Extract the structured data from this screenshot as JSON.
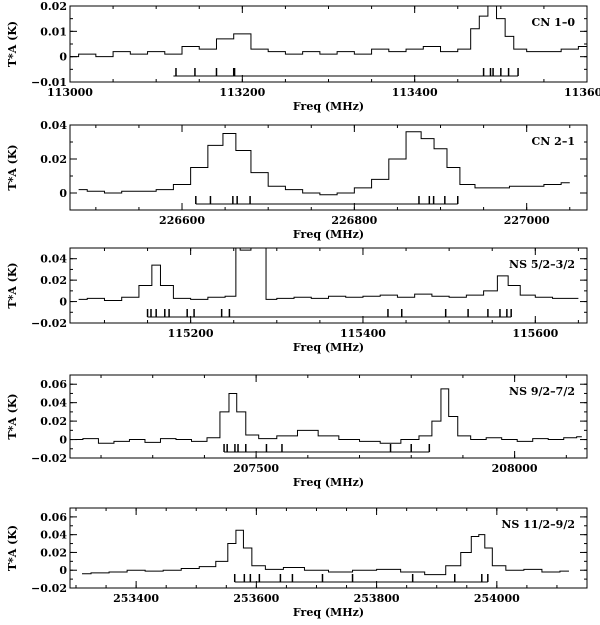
{
  "chart_data": [
    {
      "type": "line",
      "label": "CN 1–0",
      "xlabel": "Freq (MHz)",
      "ylabel": "T*A (K)",
      "xlim": [
        113000,
        113600
      ],
      "ylim": [
        -0.01,
        0.02
      ],
      "xticks": [
        113000,
        113200,
        113400,
        113600
      ],
      "yticks": [
        -0.01,
        0,
        0.01,
        0.02
      ],
      "ytick_labels": [
        "−0.01",
        "0",
        "0.01",
        "0.02"
      ],
      "series": [
        {
          "x": [
            113000,
            113020,
            113040,
            113060,
            113080,
            113100,
            113120,
            113140,
            113160,
            113180,
            113200,
            113220,
            113240,
            113260,
            113280,
            113300,
            113320,
            113340,
            113360,
            113380,
            113400,
            113420,
            113440,
            113460,
            113470,
            113480,
            113490,
            113500,
            113510,
            113520,
            113540,
            113560,
            113580,
            113600
          ],
          "y": [
            0.0,
            0.001,
            0.0,
            0.002,
            0.001,
            0.002,
            0.001,
            0.004,
            0.003,
            0.007,
            0.009,
            0.003,
            0.002,
            0.001,
            0.002,
            0.001,
            0.002,
            0.001,
            0.003,
            0.002,
            0.003,
            0.004,
            0.002,
            0.003,
            0.011,
            0.016,
            0.02,
            0.015,
            0.008,
            0.003,
            0.002,
            0.002,
            0.003,
            0.004
          ]
        }
      ],
      "hfs_bar": [
        113120,
        113520
      ],
      "hfs_lines": [
        113123,
        113145,
        113170,
        113190,
        113191,
        113480,
        113488,
        113491,
        113500,
        113509,
        113520
      ]
    },
    {
      "type": "line",
      "label": "CN 2–1",
      "xlabel": "Freq (MHz)",
      "ylabel": "T*A (K)",
      "xlim": [
        226470,
        227070
      ],
      "ylim": [
        -0.01,
        0.04
      ],
      "xticks": [
        226600,
        226800,
        227000
      ],
      "yticks": [
        0,
        0.02,
        0.04
      ],
      "ytick_labels": [
        "0",
        "0.02",
        "0.04"
      ],
      "series": [
        {
          "x": [
            226480,
            226500,
            226520,
            226540,
            226560,
            226580,
            226600,
            226620,
            226640,
            226655,
            226670,
            226690,
            226710,
            226730,
            226750,
            226770,
            226790,
            226810,
            226830,
            226850,
            226870,
            226885,
            226900,
            226915,
            226930,
            226950,
            226970,
            226990,
            227010,
            227030,
            227050
          ],
          "y": [
            0.002,
            0.001,
            0.0,
            0.001,
            0.001,
            0.002,
            0.005,
            0.015,
            0.028,
            0.035,
            0.025,
            0.012,
            0.004,
            0.002,
            0.0,
            -0.001,
            0.0,
            0.003,
            0.008,
            0.02,
            0.036,
            0.032,
            0.026,
            0.015,
            0.005,
            0.003,
            0.003,
            0.004,
            0.004,
            0.005,
            0.006
          ]
        }
      ],
      "hfs_bar": [
        226616,
        226920
      ],
      "hfs_lines": [
        226616,
        226633,
        226659,
        226664,
        226679,
        226875,
        226887,
        226892,
        226905,
        226920
      ]
    },
    {
      "type": "line",
      "label": "NS 5/2–3/2",
      "xlabel": "Freq (MHz)",
      "ylabel": "T*A (K)",
      "xlim": [
        115060,
        115660
      ],
      "ylim": [
        -0.02,
        0.05
      ],
      "xticks": [
        115200,
        115400,
        115600
      ],
      "yticks": [
        -0.02,
        0,
        0.02,
        0.04
      ],
      "ytick_labels": [
        "−0.02",
        "0",
        "0.02",
        "0.04"
      ],
      "series": [
        {
          "x": [
            115070,
            115090,
            115110,
            115130,
            115150,
            115160,
            115170,
            115190,
            115210,
            115230,
            115250,
            115255,
            115260,
            115280,
            115285,
            115290,
            115310,
            115330,
            115350,
            115370,
            115390,
            115410,
            115430,
            115450,
            115470,
            115490,
            115510,
            115530,
            115550,
            115562,
            115575,
            115590,
            115610,
            115630,
            115650
          ],
          "y": [
            0.002,
            0.003,
            0.001,
            0.004,
            0.015,
            0.034,
            0.015,
            0.003,
            0.002,
            0.004,
            0.005,
            0.05,
            0.048,
            0.05,
            0.05,
            0.002,
            0.003,
            0.004,
            0.003,
            0.005,
            0.004,
            0.005,
            0.006,
            0.004,
            0.007,
            0.005,
            0.004,
            0.006,
            0.01,
            0.024,
            0.015,
            0.006,
            0.004,
            0.003,
            0.003
          ]
        }
      ],
      "hfs_bar": [
        115150,
        115572
      ],
      "hfs_lines": [
        115150,
        115154,
        115160,
        115170,
        115175,
        115196,
        115204,
        115236,
        115245,
        115429,
        115445,
        115496,
        115522,
        115545,
        115559,
        115567,
        115572
      ]
    },
    {
      "type": "line",
      "label": "NS 9/2–7/2",
      "xlabel": "Freq (MHz)",
      "ylabel": "T*A (K)",
      "xlim": [
        207140,
        208140
      ],
      "ylim": [
        -0.02,
        0.07
      ],
      "xticks": [
        207500,
        208000
      ],
      "yticks": [
        -0.02,
        0,
        0.02,
        0.04,
        0.06
      ],
      "ytick_labels": [
        "−0.02",
        "0",
        "0.02",
        "0.04",
        "0.06"
      ],
      "series": [
        {
          "x": [
            207150,
            207180,
            207210,
            207240,
            207270,
            207300,
            207330,
            207360,
            207390,
            207420,
            207440,
            207455,
            207470,
            207490,
            207520,
            207560,
            207600,
            207640,
            207680,
            207720,
            207760,
            207800,
            207830,
            207850,
            207865,
            207880,
            207900,
            207930,
            207960,
            207990,
            208020,
            208050,
            208080,
            208110,
            208130
          ],
          "y": [
            0.0,
            0.001,
            -0.004,
            -0.002,
            0.0,
            -0.003,
            0.001,
            0.0,
            -0.002,
            0.002,
            0.03,
            0.05,
            0.03,
            0.005,
            0.001,
            0.004,
            0.01,
            0.004,
            0.0,
            -0.002,
            -0.004,
            0.0,
            0.004,
            0.02,
            0.055,
            0.025,
            0.004,
            0.0,
            0.002,
            0.0,
            -0.002,
            0.001,
            0.0,
            0.002,
            0.003
          ]
        }
      ],
      "hfs_bar": [
        207438,
        207835
      ],
      "hfs_lines": [
        207438,
        207444,
        207459,
        207465,
        207480,
        207520,
        207550,
        207760,
        207800,
        207835
      ]
    },
    {
      "type": "line",
      "label": "NS 11/2–9/2",
      "xlabel": "Freq (MHz)",
      "ylabel": "T*A (K)",
      "xlim": [
        253290,
        254150
      ],
      "ylim": [
        -0.02,
        0.07
      ],
      "xticks": [
        253400,
        253600,
        253800,
        254000
      ],
      "yticks": [
        -0.02,
        0,
        0.02,
        0.04,
        0.06
      ],
      "ytick_labels": [
        "−0.02",
        "0",
        "0.02",
        "0.04",
        "0.06"
      ],
      "series": [
        {
          "x": [
            253310,
            253340,
            253370,
            253400,
            253430,
            253460,
            253490,
            253520,
            253545,
            253560,
            253572,
            253585,
            253600,
            253630,
            253660,
            253700,
            253740,
            253780,
            253820,
            253860,
            253900,
            253930,
            253950,
            253965,
            253975,
            253985,
            254000,
            254030,
            254060,
            254090,
            254120
          ],
          "y": [
            -0.004,
            -0.003,
            -0.002,
            0.0,
            -0.001,
            0.0,
            0.002,
            0.004,
            0.01,
            0.03,
            0.045,
            0.025,
            0.005,
            0.001,
            0.003,
            0.0,
            -0.002,
            0.0,
            0.001,
            -0.002,
            -0.005,
            0.005,
            0.02,
            0.038,
            0.04,
            0.025,
            0.005,
            0.0,
            0.001,
            -0.002,
            -0.001
          ]
        }
      ],
      "hfs_bar": [
        253564,
        253985
      ],
      "hfs_lines": [
        253564,
        253580,
        253590,
        253605,
        253640,
        253660,
        253710,
        253760,
        253860,
        253930,
        253975,
        253985
      ]
    }
  ]
}
